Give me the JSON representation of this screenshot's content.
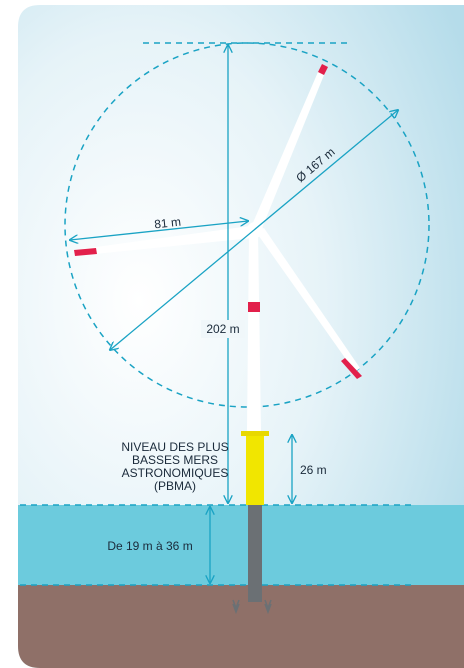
{
  "labels": {
    "blade_length": "81 m",
    "rotor_diameter": "Ø 167 m",
    "total_height": "202 m",
    "pbma": [
      "NIVEAU DES PLUS",
      "BASSES MERS",
      "ASTRONOMIQUES",
      "(PBMA)"
    ],
    "transition_height": "26 m",
    "water_depth": "De 19 m à 36 m"
  }
}
